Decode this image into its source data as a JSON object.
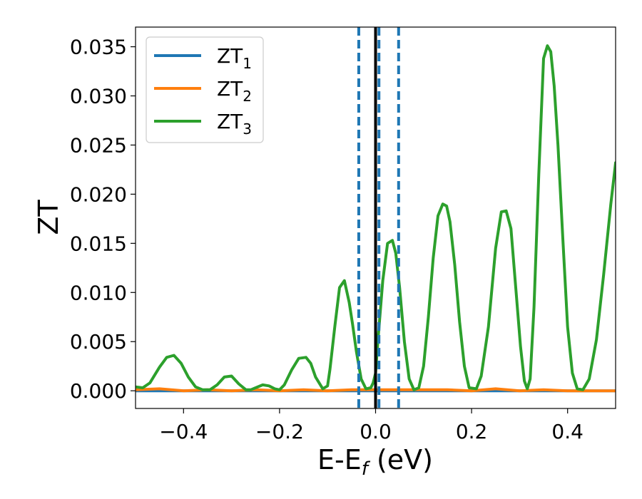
{
  "chart_data": {
    "type": "line",
    "title": "",
    "xlabel": {
      "main": "E-E",
      "sub": "f",
      "unit": " (eV)"
    },
    "ylabel": "ZT",
    "xlim": [
      -0.5,
      0.5
    ],
    "ylim": [
      -0.0018,
      0.037
    ],
    "xticks": [
      -0.4,
      -0.2,
      0.0,
      0.2,
      0.4
    ],
    "xtick_labels": [
      "−0.4",
      "−0.2",
      "0.0",
      "0.2",
      "0.4"
    ],
    "yticks": [
      0.0,
      0.005,
      0.01,
      0.015,
      0.02,
      0.025,
      0.03,
      0.035
    ],
    "ytick_labels": [
      "0.000",
      "0.005",
      "0.010",
      "0.015",
      "0.020",
      "0.025",
      "0.030",
      "0.035"
    ],
    "grid": false,
    "legend_position": "top-left",
    "legend": [
      {
        "base": "ZT",
        "sub": "1",
        "color": "#1f77b4"
      },
      {
        "base": "ZT",
        "sub": "2",
        "color": "#ff7f0e"
      },
      {
        "base": "ZT",
        "sub": "3",
        "color": "#2ca02c"
      }
    ],
    "series": [
      {
        "color": "#1f77b4",
        "x": [
          -0.5,
          0.5
        ],
        "y": [
          0.0,
          0.0
        ]
      },
      {
        "color": "#ff7f0e",
        "x": [
          -0.5,
          -0.45,
          -0.4,
          -0.35,
          -0.3,
          -0.25,
          -0.2,
          -0.15,
          -0.1,
          -0.05,
          0.0,
          0.05,
          0.1,
          0.15,
          0.2,
          0.25,
          0.3,
          0.35,
          0.4,
          0.45,
          0.5
        ],
        "y": [
          0.0001,
          0.0002,
          0.0,
          0.0001,
          0.0,
          0.0001,
          0.0,
          0.0001,
          0.0,
          0.0001,
          0.0001,
          0.0001,
          0.0001,
          0.0001,
          0.0,
          0.0002,
          0.0,
          0.0001,
          0.0,
          0.0,
          0.0
        ]
      },
      {
        "color": "#2ca02c",
        "x": [
          -0.5,
          -0.485,
          -0.47,
          -0.45,
          -0.435,
          -0.42,
          -0.405,
          -0.39,
          -0.375,
          -0.36,
          -0.345,
          -0.33,
          -0.315,
          -0.3,
          -0.285,
          -0.27,
          -0.26,
          -0.25,
          -0.235,
          -0.222,
          -0.21,
          -0.2,
          -0.19,
          -0.175,
          -0.16,
          -0.145,
          -0.135,
          -0.125,
          -0.11,
          -0.1,
          -0.095,
          -0.085,
          -0.075,
          -0.065,
          -0.055,
          -0.048,
          -0.04,
          -0.03,
          -0.02,
          -0.01,
          -0.005,
          0.0,
          0.005,
          0.015,
          0.025,
          0.035,
          0.042,
          0.05,
          0.06,
          0.07,
          0.08,
          0.09,
          0.1,
          0.11,
          0.12,
          0.13,
          0.14,
          0.148,
          0.155,
          0.165,
          0.175,
          0.185,
          0.195,
          0.21,
          0.22,
          0.235,
          0.25,
          0.262,
          0.272,
          0.282,
          0.292,
          0.302,
          0.31,
          0.316,
          0.322,
          0.33,
          0.34,
          0.35,
          0.358,
          0.365,
          0.372,
          0.38,
          0.39,
          0.4,
          0.41,
          0.42,
          0.432,
          0.445,
          0.46,
          0.475,
          0.49,
          0.5
        ],
        "y": [
          0.0004,
          0.0003,
          0.0008,
          0.0024,
          0.0034,
          0.0036,
          0.0028,
          0.0014,
          0.0004,
          0.0001,
          0.0001,
          0.0006,
          0.0014,
          0.0015,
          0.0007,
          0.0001,
          0.0001,
          0.0003,
          0.0006,
          0.0005,
          0.0002,
          0.0001,
          0.0006,
          0.0021,
          0.0033,
          0.0034,
          0.0028,
          0.0014,
          0.0002,
          0.0005,
          0.0022,
          0.0065,
          0.0105,
          0.0112,
          0.009,
          0.0068,
          0.004,
          0.0012,
          0.0002,
          0.0003,
          0.0008,
          0.0018,
          0.0052,
          0.0112,
          0.015,
          0.0153,
          0.014,
          0.0105,
          0.005,
          0.0012,
          0.0001,
          0.0003,
          0.0025,
          0.0075,
          0.0135,
          0.0178,
          0.019,
          0.0188,
          0.0172,
          0.0128,
          0.007,
          0.0025,
          0.0003,
          0.0002,
          0.0015,
          0.0065,
          0.0145,
          0.0182,
          0.0183,
          0.0165,
          0.0105,
          0.0045,
          0.001,
          0.0002,
          0.0012,
          0.0085,
          0.022,
          0.0338,
          0.0351,
          0.0345,
          0.031,
          0.025,
          0.0155,
          0.0065,
          0.0018,
          0.0002,
          0.0001,
          0.0012,
          0.0052,
          0.0118,
          0.019,
          0.0232
        ]
      }
    ],
    "vlines": [
      {
        "x": -0.035,
        "style": "dashed",
        "color": "#1f77b4"
      },
      {
        "x": 0.007,
        "style": "dashed",
        "color": "#1f77b4"
      },
      {
        "x": 0.048,
        "style": "dashed",
        "color": "#1f77b4"
      },
      {
        "x": 0.0,
        "style": "solid",
        "color": "#000000"
      }
    ]
  }
}
